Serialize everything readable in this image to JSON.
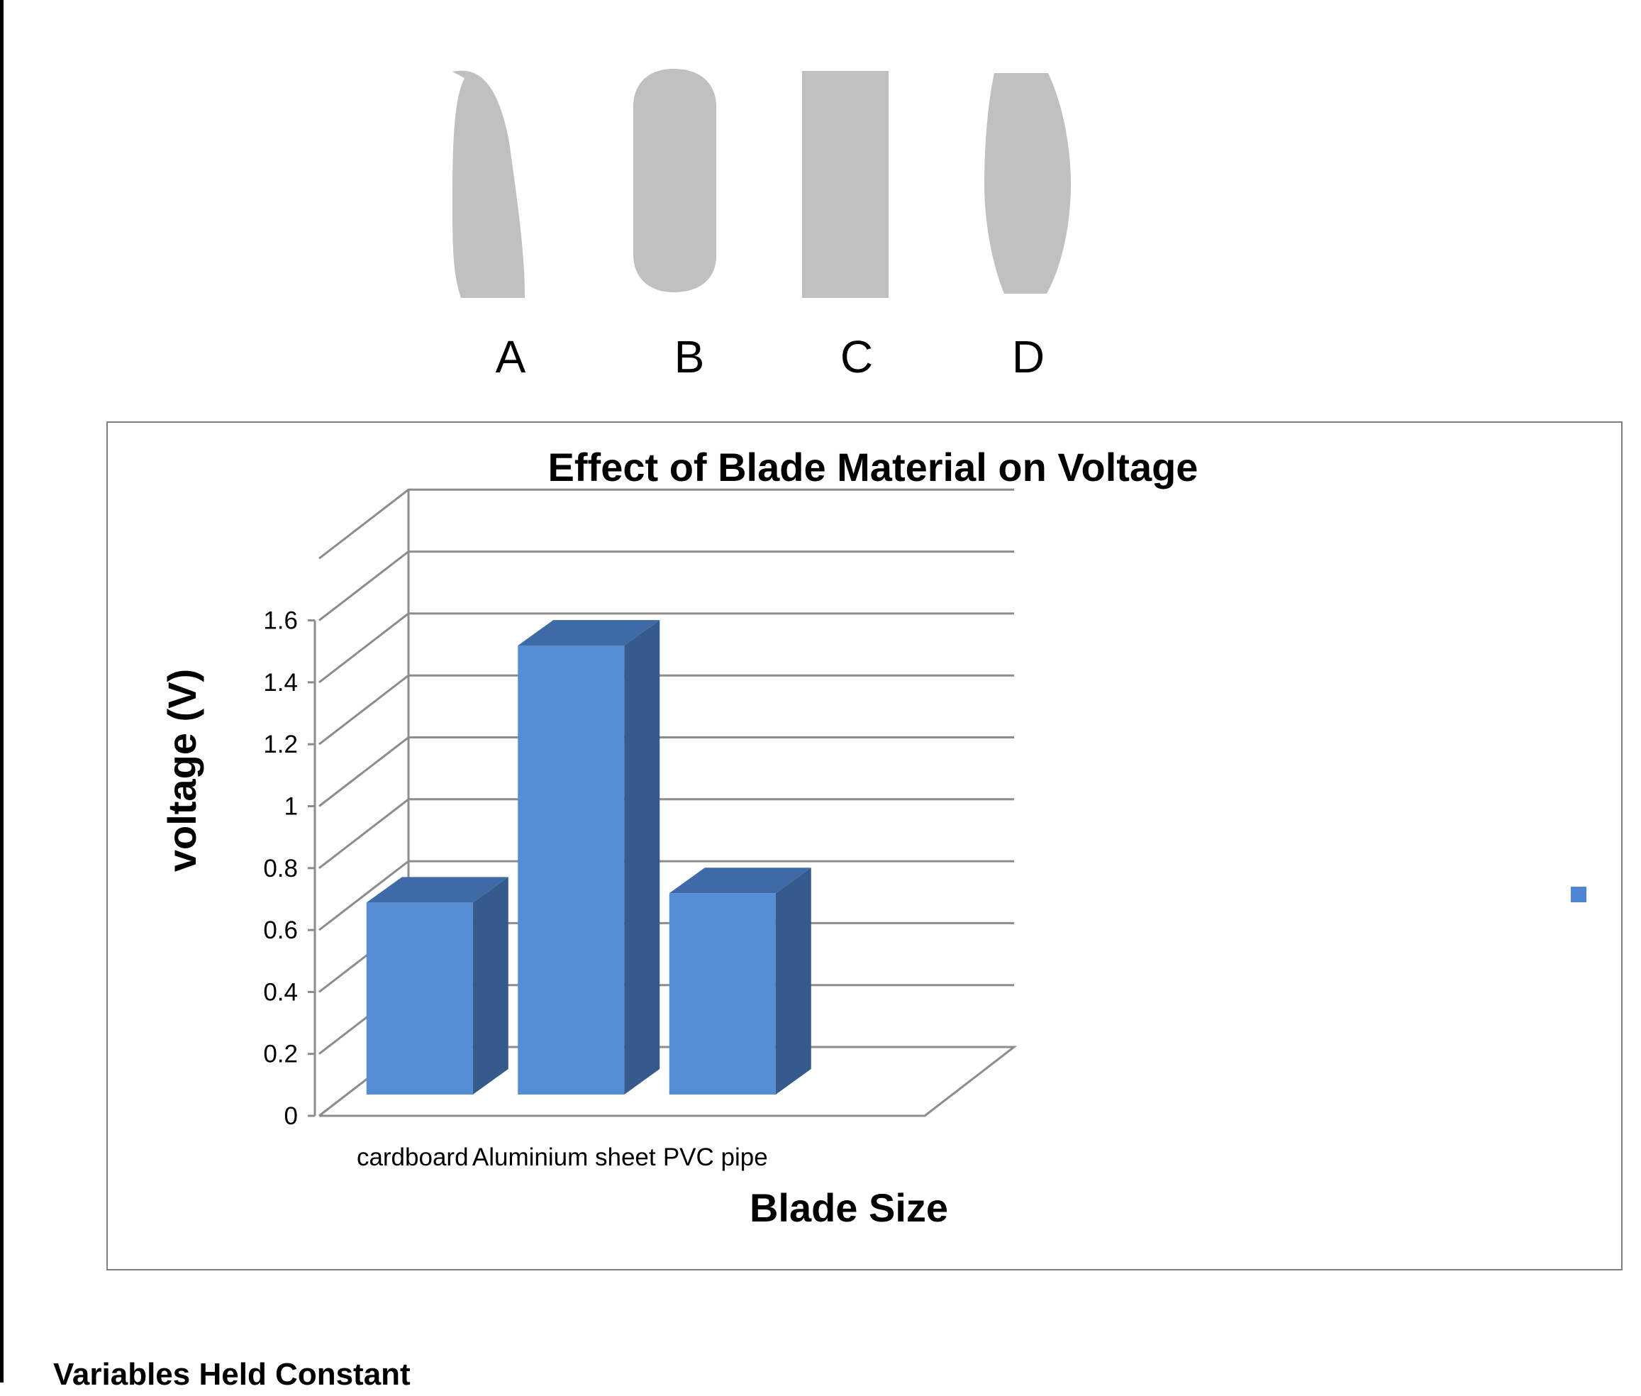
{
  "shapes": {
    "fill": "#c0c0c0",
    "items": [
      {
        "id": "A",
        "label": "A"
      },
      {
        "id": "B",
        "label": "B"
      },
      {
        "id": "C",
        "label": "C"
      },
      {
        "id": "D",
        "label": "D"
      }
    ]
  },
  "chart_data": {
    "type": "bar",
    "style": "3d-clustered-column",
    "title": "Effect of Blade Material on Voltage",
    "xlabel": "Blade Size",
    "ylabel": "voltage (V)",
    "categories": [
      "cardboard",
      "Aluminium sheet",
      "PVC pipe"
    ],
    "values": [
      0.62,
      1.45,
      0.65
    ],
    "ylim": [
      0,
      1.8
    ],
    "yticks": [
      "0",
      "0.2",
      "0.4",
      "0.6",
      "0.8",
      "1",
      "1.2",
      "1.4",
      "1.6"
    ],
    "grid": true,
    "legend": "right",
    "colors": {
      "bar_front": "#558ed5",
      "bar_side": "#355a8c",
      "bar_top": "#3e6aa8",
      "gridline": "#8c8c8c",
      "legend_marker": "#4f86d4"
    }
  },
  "section": {
    "heading": "Variables Held Constant"
  }
}
